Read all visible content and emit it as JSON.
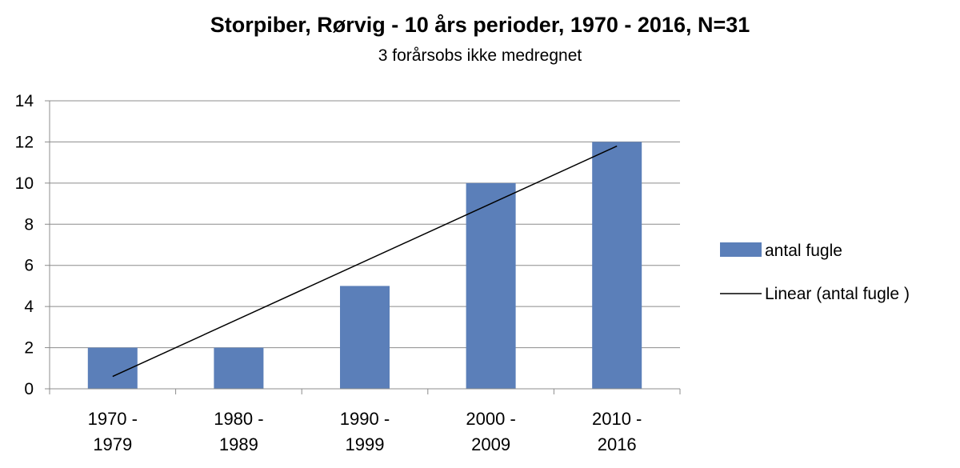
{
  "chart_data": {
    "type": "bar",
    "title": "Storpiber, Rørvig - 10 års perioder, 1970 - 2016, N=31",
    "subtitle": "3 forårsobs ikke medregnet",
    "categories": [
      [
        "1970 -",
        "1979"
      ],
      [
        "1980 -",
        "1989"
      ],
      [
        "1990 -",
        "1999"
      ],
      [
        "2000 -",
        "2009"
      ],
      [
        "2010 -",
        "2016"
      ]
    ],
    "series": [
      {
        "name": "antal fugle",
        "values": [
          2,
          2,
          5,
          10,
          12
        ],
        "color": "#5b7fb9"
      }
    ],
    "trendline": {
      "name": "Linear  (antal fugle )",
      "type": "linear",
      "color": "#000000"
    },
    "yticks": [
      0,
      2,
      4,
      6,
      8,
      10,
      12,
      14
    ],
    "ylim": [
      0,
      14
    ],
    "grid": true,
    "legend_position": "right"
  }
}
